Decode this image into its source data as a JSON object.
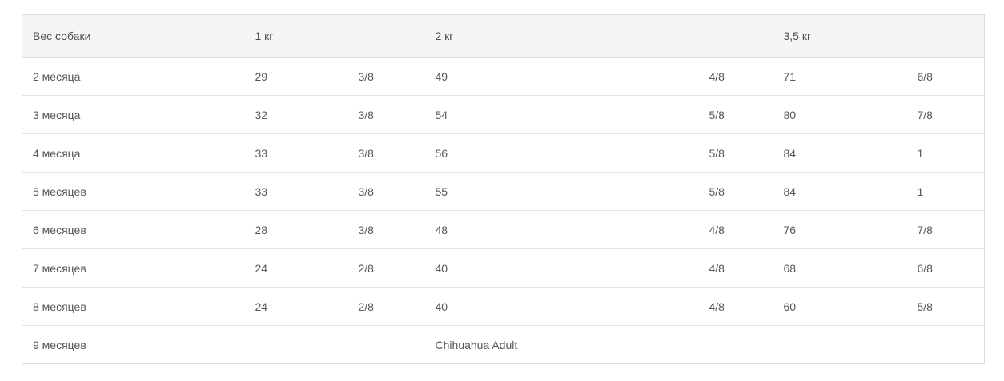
{
  "table": {
    "title_semantic": "chihuahua-puppy-feeding-table",
    "header": {
      "col_weight": "Вес собаки",
      "col_1kg": "1 кг",
      "col_2kg": "2 кг",
      "col_3_5kg": "3,5 кг"
    },
    "rows": [
      {
        "age": "2 месяца",
        "g1": "29",
        "f1": "3/8",
        "g2": "49",
        "f2": "4/8",
        "g3": "71",
        "f3": "6/8"
      },
      {
        "age": "3 месяца",
        "g1": "32",
        "f1": "3/8",
        "g2": "54",
        "f2": "5/8",
        "g3": "80",
        "f3": "7/8"
      },
      {
        "age": "4 месяца",
        "g1": "33",
        "f1": "3/8",
        "g2": "56",
        "f2": "5/8",
        "g3": "84",
        "f3": "1"
      },
      {
        "age": "5 месяцев",
        "g1": "33",
        "f1": "3/8",
        "g2": "55",
        "f2": "5/8",
        "g3": "84",
        "f3": "1"
      },
      {
        "age": "6 месяцев",
        "g1": "28",
        "f1": "3/8",
        "g2": "48",
        "f2": "4/8",
        "g3": "76",
        "f3": "7/8"
      },
      {
        "age": "7 месяцев",
        "g1": "24",
        "f1": "2/8",
        "g2": "40",
        "f2": "4/8",
        "g3": "68",
        "f3": "6/8"
      },
      {
        "age": "8 месяцев",
        "g1": "24",
        "f1": "2/8",
        "g2": "40",
        "f2": "4/8",
        "g3": "60",
        "f3": "5/8"
      }
    ],
    "final_row": {
      "age": "9 месяцев",
      "note": "Chihuahua Adult"
    },
    "colors": {
      "header_bg": "#f5f5f5",
      "outer_border": "#dcdcdc",
      "row_border": "#e4e4e4",
      "text": "#545454"
    }
  }
}
